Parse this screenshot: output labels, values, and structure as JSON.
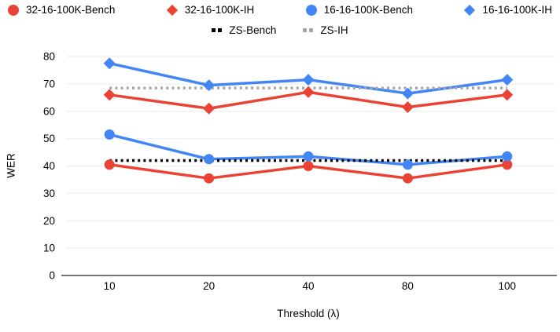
{
  "chart_data": {
    "type": "line",
    "x": [
      10,
      20,
      40,
      80,
      100
    ],
    "xlabel": "Threshold (λ)",
    "ylabel": "WER",
    "ylim": [
      0,
      80
    ],
    "yticks": [
      0,
      10,
      20,
      30,
      40,
      50,
      60,
      70,
      80
    ],
    "grid": true,
    "legend_position": "top",
    "grid_color": "#F2F2F2",
    "axis_color": "#757575",
    "text_color": "#000000",
    "series": [
      {
        "name": "32-16-100K-Bench",
        "marker": "circle",
        "line": "solid",
        "color": "#EA4335",
        "values": [
          40.5,
          35.5,
          40.0,
          35.5,
          40.5
        ]
      },
      {
        "name": "32-16-100K-IH",
        "marker": "diamond",
        "line": "solid",
        "color": "#EA4335",
        "values": [
          66.0,
          61.0,
          67.0,
          61.5,
          66.0
        ]
      },
      {
        "name": "16-16-100K-Bench",
        "marker": "circle",
        "line": "solid",
        "color": "#4285F4",
        "values": [
          51.5,
          42.5,
          43.5,
          40.5,
          43.5
        ]
      },
      {
        "name": "16-16-100K-IH",
        "marker": "diamond",
        "line": "solid",
        "color": "#4285F4",
        "values": [
          77.5,
          69.5,
          71.5,
          66.5,
          71.5
        ]
      },
      {
        "name": "ZS-Bench",
        "marker": "dots",
        "line": "dotted",
        "color": "#000000",
        "values": [
          42.0,
          42.0,
          42.0,
          42.0,
          42.0
        ]
      },
      {
        "name": "ZS-IH",
        "marker": "dots",
        "line": "dotted",
        "color": "#A6A6A6",
        "values": [
          68.5,
          68.5,
          68.5,
          68.5,
          68.5
        ]
      }
    ]
  }
}
